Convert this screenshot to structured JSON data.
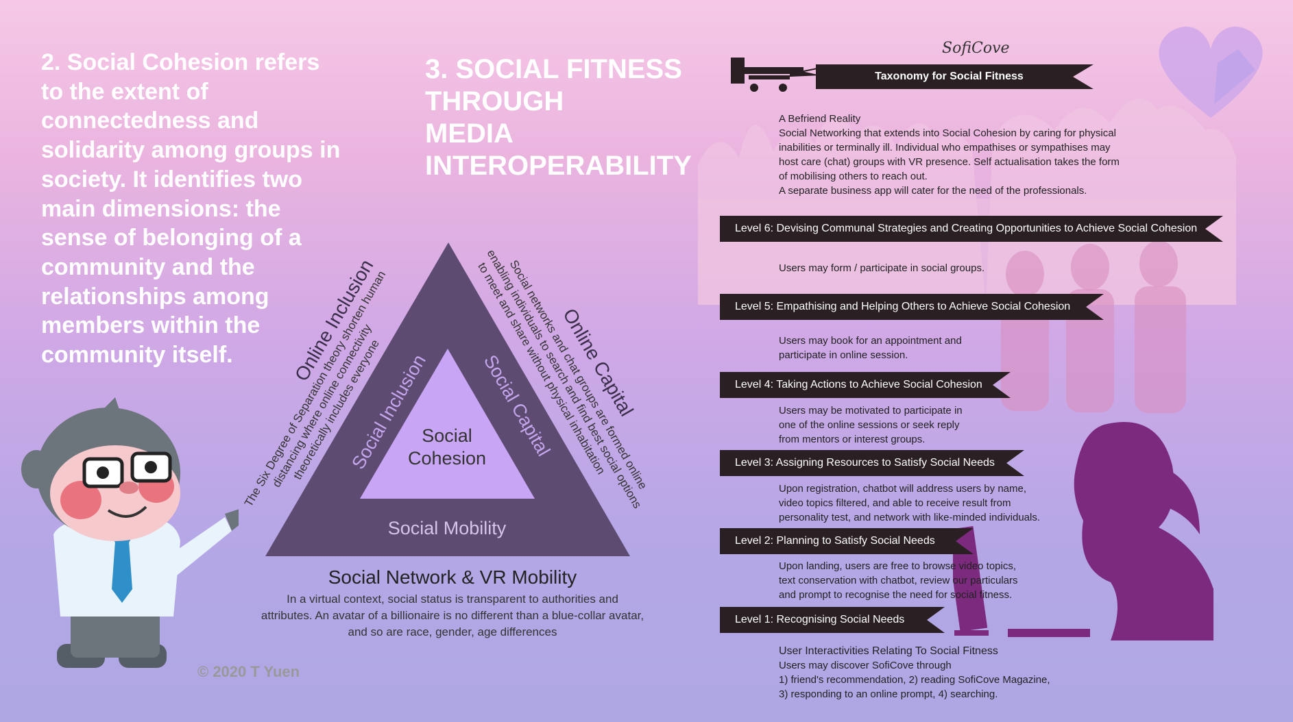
{
  "left": {
    "definition": "2. Social Cohesion refers to the extent of connectedness and solidarity among groups in society. It identifies two main dimensions: the sense of belonging of a community and the relationships among members within the community itself."
  },
  "center": {
    "title_lines": [
      "3. SOCIAL FITNESS",
      "THROUGH",
      "MEDIA",
      "INTEROPERABILITY"
    ],
    "triangle": {
      "center_lines": [
        "Social",
        "Cohesion"
      ],
      "left_side": "Social Inclusion",
      "right_side": "Social Capital",
      "bottom_side": "Social Mobility"
    },
    "online_inclusion": {
      "heading": "Online Inclusion",
      "lines": [
        "The Six Degree of Separation theory shorten human",
        "distancing where online connectivity",
        "theoretically includes everyone"
      ]
    },
    "online_capital": {
      "heading": "Online Capital",
      "lines": [
        "Social networks and chat groups are formed online",
        "enabling individuals to search and find best social options",
        "to meet and share without physical inhabitation"
      ]
    },
    "vr": {
      "heading": "Social Network & VR Mobility",
      "lines": [
        "In a virtual context, social status is transparent to authorities and",
        "attributes. An avatar of a billionaire is no different than a blue-collar avatar,",
        "and so are race, gender, age differences"
      ]
    },
    "copyright": "© 2020 T Yuen"
  },
  "right": {
    "brand": "SofiCove",
    "banner": "Taxonomy for Social Fitness",
    "intro_lines": [
      "A Befriend Reality",
      "Social Networking that extends into Social Cohesion by caring for physical",
      "inabilities or terminally ill. Individual who empathises or sympathises may",
      "host care (chat) groups with VR presence. Self actualisation takes the form",
      "of mobilising others to reach out.",
      "A separate business app will cater for the need of the professionals."
    ],
    "levels": [
      {
        "label": "Level 6: Devising Communal Strategies and Creating Opportunities to Achieve Social Cohesion",
        "lines": [
          "Users may form / participate in social groups."
        ]
      },
      {
        "label": "Level 5: Empathising and Helping Others to Achieve Social Cohesion",
        "lines": [
          "Users may book for an appointment and",
          "participate in online session."
        ]
      },
      {
        "label": "Level 4: Taking Actions to Achieve Social Cohesion",
        "lines": [
          "Users may be motivated to participate in",
          "one of the online sessions or seek reply",
          "from mentors or interest groups."
        ]
      },
      {
        "label": "Level 3: Assigning Resources to Satisfy Social Needs",
        "lines": [
          "Upon registration, chatbot will address users by name,",
          "video topics filtered, and able to receive result from",
          "personality test, and network with like-minded individuals."
        ]
      },
      {
        "label": "Level 2: Planning to Satisfy Social Needs",
        "lines": [
          "Upon landing, users are free to browse video topics,",
          "text conservation with chatbot, review our particulars",
          "and prompt to recognise the need for social fitness."
        ]
      },
      {
        "label": "Level 1: Recognising Social Needs",
        "lines": []
      }
    ],
    "outro_lines": [
      "User Interactivities Relating To Social Fitness",
      "Users may discover SofiCove through",
      "1) friend's recommendation, 2) reading SofiCove Magazine,",
      "3) responding to an online prompt, 4) searching."
    ]
  },
  "colors": {
    "triangle_outer": "#5e4b72",
    "triangle_inner": "#c9a6f5",
    "banner": "#2a1f22",
    "silhouette": "#7b2a7e"
  },
  "icons": [
    "mascot-illustration",
    "biplane-icon",
    "heart-icon",
    "crowd-silhouette",
    "woman-at-computer-silhouette"
  ]
}
